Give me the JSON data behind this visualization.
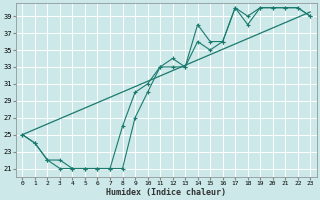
{
  "title": "",
  "xlabel": "Humidex (Indice chaleur)",
  "bg_color": "#cce8e8",
  "grid_color": "#b0d0d0",
  "line_color": "#1a7a6e",
  "xlim": [
    -0.5,
    23.5
  ],
  "ylim": [
    20.0,
    40.5
  ],
  "xticks": [
    0,
    1,
    2,
    3,
    4,
    5,
    6,
    7,
    8,
    9,
    10,
    11,
    12,
    13,
    14,
    15,
    16,
    17,
    18,
    19,
    20,
    21,
    22,
    23
  ],
  "yticks": [
    21,
    23,
    25,
    27,
    29,
    31,
    33,
    35,
    37,
    39
  ],
  "series_jagged1_x": [
    0,
    1,
    2,
    3,
    4,
    5,
    6,
    7,
    8,
    9,
    10,
    11,
    12,
    13,
    14,
    15,
    16,
    17,
    18,
    19,
    20,
    21,
    22,
    23
  ],
  "series_jagged1_y": [
    25,
    24,
    22,
    22,
    21,
    21,
    21,
    21,
    21,
    27,
    30,
    33,
    34,
    33,
    38,
    36,
    36,
    40,
    39,
    40,
    40,
    40,
    40,
    39
  ],
  "series_jagged2_x": [
    0,
    1,
    2,
    3,
    4,
    5,
    6,
    7,
    8,
    9,
    10,
    11,
    12,
    13,
    14,
    15,
    16,
    17,
    18,
    19,
    20,
    21,
    22,
    23
  ],
  "series_jagged2_y": [
    25,
    24,
    22,
    21,
    21,
    21,
    21,
    21,
    26,
    30,
    31,
    33,
    33,
    33,
    36,
    35,
    36,
    40,
    38,
    40,
    40,
    40,
    40,
    39
  ],
  "trend_x": [
    0,
    23
  ],
  "trend_y": [
    25,
    39.5
  ]
}
